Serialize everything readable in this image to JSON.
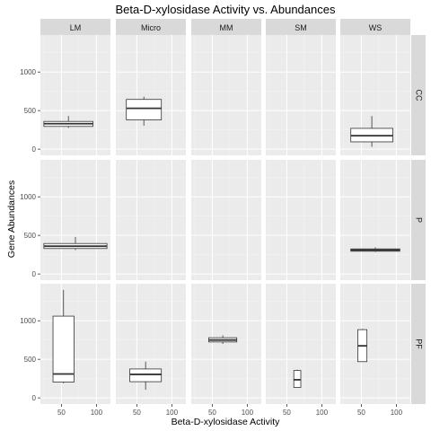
{
  "chart_data": {
    "type": "boxplot",
    "title": "Beta-D-xylosidase Activity vs. Abundances",
    "xlabel": "Beta-D-xylosidase Activity",
    "ylabel": "Gene Abundances",
    "col_facets": [
      "LM",
      "Micro",
      "MM",
      "SM",
      "WS"
    ],
    "row_facets": [
      "CC",
      "P",
      "PF"
    ],
    "xlim": [
      20,
      120
    ],
    "ylim": [
      -80,
      1480
    ],
    "x_ticks": [
      50,
      100
    ],
    "y_ticks": [
      0,
      500,
      1000
    ],
    "grid": true,
    "boxes": [
      {
        "col": "LM",
        "row": "CC",
        "x_min": 25,
        "x_max": 95,
        "whisker_low": 275,
        "q1": 295,
        "median": 330,
        "q3": 360,
        "whisker_high": 430
      },
      {
        "col": "Micro",
        "row": "CC",
        "x_min": 35,
        "x_max": 85,
        "whisker_low": 305,
        "q1": 380,
        "median": 530,
        "q3": 645,
        "whisker_high": 680
      },
      {
        "col": "WS",
        "row": "CC",
        "x_min": 35,
        "x_max": 95,
        "whisker_low": 30,
        "q1": 95,
        "median": 175,
        "q3": 270,
        "whisker_high": 430
      },
      {
        "col": "LM",
        "row": "P",
        "x_min": 25,
        "x_max": 115,
        "whisker_low": 310,
        "q1": 330,
        "median": 360,
        "q3": 395,
        "whisker_high": 480
      },
      {
        "col": "WS",
        "row": "P",
        "x_min": 35,
        "x_max": 105,
        "whisker_low": 285,
        "q1": 295,
        "median": 310,
        "q3": 325,
        "whisker_high": 345
      },
      {
        "col": "LM",
        "row": "PF",
        "x_min": 38,
        "x_max": 68,
        "whisker_low": 190,
        "q1": 205,
        "median": 310,
        "q3": 1060,
        "whisker_high": 1400
      },
      {
        "col": "Micro",
        "row": "PF",
        "x_min": 40,
        "x_max": 85,
        "whisker_low": 105,
        "q1": 210,
        "median": 305,
        "q3": 375,
        "whisker_high": 470
      },
      {
        "col": "MM",
        "row": "PF",
        "x_min": 45,
        "x_max": 85,
        "whisker_low": 700,
        "q1": 725,
        "median": 750,
        "q3": 780,
        "whisker_high": 810
      },
      {
        "col": "SM",
        "row": "PF",
        "x_min": 60,
        "x_max": 70,
        "whisker_low": 130,
        "q1": 135,
        "median": 235,
        "q3": 355,
        "whisker_high": 365
      },
      {
        "col": "WS",
        "row": "PF",
        "x_min": 45,
        "x_max": 58,
        "whisker_low": 470,
        "q1": 470,
        "median": 675,
        "q3": 885,
        "whisker_high": 895
      }
    ]
  }
}
